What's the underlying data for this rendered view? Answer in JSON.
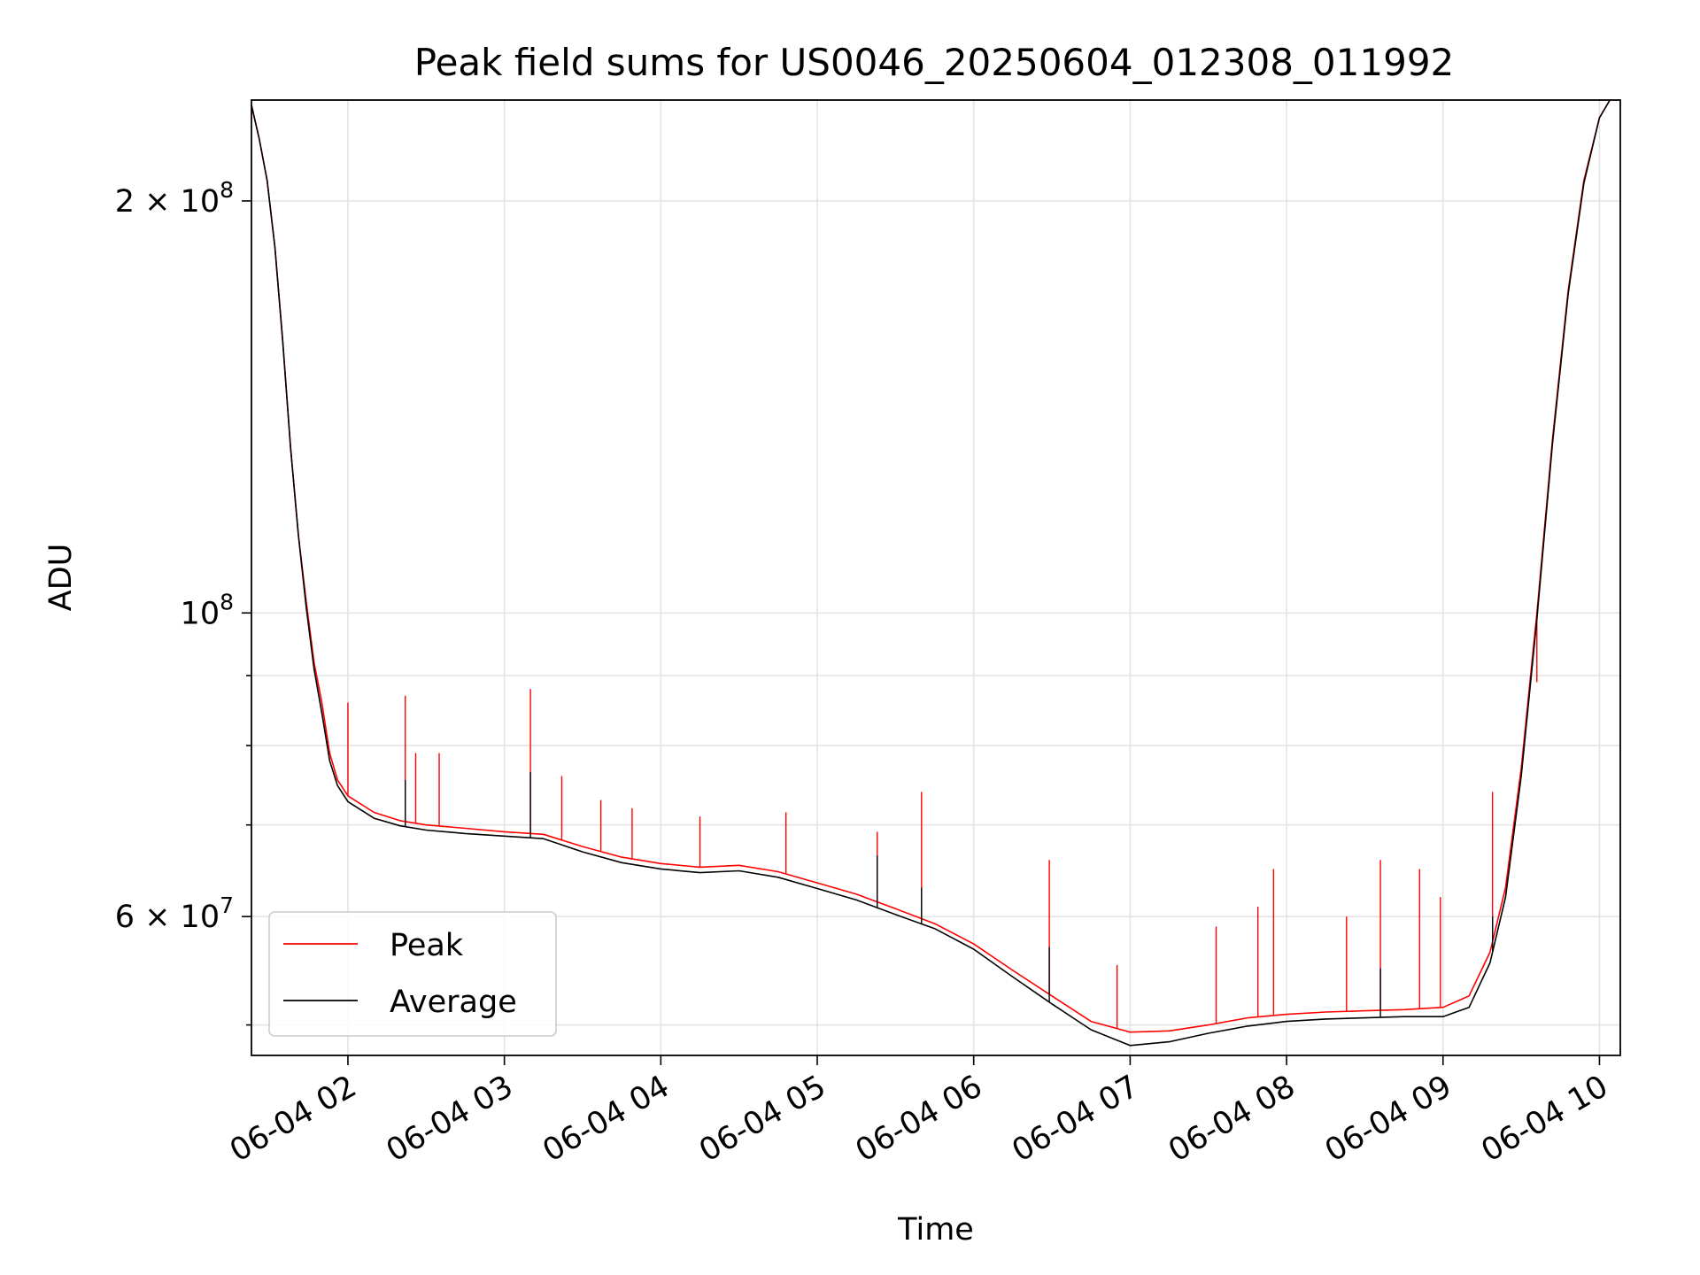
{
  "colors": {
    "peak": "#ff0000",
    "average": "#000000",
    "grid": "#e4e4e4",
    "background": "#ffffff"
  },
  "chart_data": {
    "type": "line",
    "title": "Peak field sums for US0046_20250604_012308_011992",
    "xlabel": "Time",
    "ylabel": "ADU",
    "yscale": "log",
    "grid": true,
    "legend_position": "lower-left",
    "xlim": [
      "2025-06-04 01:23",
      "2025-06-04 10:08"
    ],
    "ylim": [
      47500000,
      237000000
    ],
    "x_ticks": [
      "2025-06-04 02:00",
      "2025-06-04 03:00",
      "2025-06-04 04:00",
      "2025-06-04 05:00",
      "2025-06-04 06:00",
      "2025-06-04 07:00",
      "2025-06-04 08:00",
      "2025-06-04 09:00",
      "2025-06-04 10:00"
    ],
    "x_tick_labels": [
      "06-04 02",
      "06-04 03",
      "06-04 04",
      "06-04 05",
      "06-04 06",
      "06-04 07",
      "06-04 08",
      "06-04 09",
      "06-04 10"
    ],
    "y_major_ticks": [
      {
        "value": 200000000,
        "mantissa": "2",
        "exponent": "8"
      },
      {
        "value": 100000000,
        "mantissa": "",
        "exponent": "8"
      },
      {
        "value": 60000000,
        "mantissa": "6",
        "exponent": "7"
      }
    ],
    "y_minor_ticks": [
      50000000,
      70000000,
      80000000,
      90000000
    ],
    "series": [
      {
        "name": "Peak",
        "color": "#ff0000",
        "points": [
          [
            "2025-06-04 01:23",
            235000000
          ],
          [
            "2025-06-04 01:26",
            222000000
          ],
          [
            "2025-06-04 01:29",
            207000000
          ],
          [
            "2025-06-04 01:32",
            185000000
          ],
          [
            "2025-06-04 01:35",
            158000000
          ],
          [
            "2025-06-04 01:38",
            132000000
          ],
          [
            "2025-06-04 01:41",
            114000000
          ],
          [
            "2025-06-04 01:44",
            102000000
          ],
          [
            "2025-06-04 01:47",
            92000000
          ],
          [
            "2025-06-04 01:50",
            86000000
          ],
          [
            "2025-06-04 01:53",
            79000000
          ],
          [
            "2025-06-04 01:56",
            75500000
          ],
          [
            "2025-06-04 02:00",
            73500000
          ],
          [
            "2025-06-04 02:10",
            71500000
          ],
          [
            "2025-06-04 02:20",
            70500000
          ],
          [
            "2025-06-04 02:30",
            70000000
          ],
          [
            "2025-06-04 02:45",
            69600000
          ],
          [
            "2025-06-04 03:00",
            69200000
          ],
          [
            "2025-06-04 03:15",
            68900000
          ],
          [
            "2025-06-04 03:30",
            67500000
          ],
          [
            "2025-06-04 03:45",
            66300000
          ],
          [
            "2025-06-04 04:00",
            65600000
          ],
          [
            "2025-06-04 04:15",
            65200000
          ],
          [
            "2025-06-04 04:30",
            65400000
          ],
          [
            "2025-06-04 04:45",
            64700000
          ],
          [
            "2025-06-04 05:00",
            63500000
          ],
          [
            "2025-06-04 05:15",
            62300000
          ],
          [
            "2025-06-04 05:30",
            60800000
          ],
          [
            "2025-06-04 05:45",
            59300000
          ],
          [
            "2025-06-04 06:00",
            57300000
          ],
          [
            "2025-06-04 06:15",
            54800000
          ],
          [
            "2025-06-04 06:30",
            52500000
          ],
          [
            "2025-06-04 06:45",
            50300000
          ],
          [
            "2025-06-04 07:00",
            49400000
          ],
          [
            "2025-06-04 07:15",
            49500000
          ],
          [
            "2025-06-04 07:30",
            50000000
          ],
          [
            "2025-06-04 07:45",
            50600000
          ],
          [
            "2025-06-04 08:00",
            50900000
          ],
          [
            "2025-06-04 08:15",
            51100000
          ],
          [
            "2025-06-04 08:30",
            51200000
          ],
          [
            "2025-06-04 08:45",
            51300000
          ],
          [
            "2025-06-04 09:00",
            51500000
          ],
          [
            "2025-06-04 09:10",
            52500000
          ],
          [
            "2025-06-04 09:18",
            56500000
          ],
          [
            "2025-06-04 09:24",
            63000000
          ],
          [
            "2025-06-04 09:30",
            77000000
          ],
          [
            "2025-06-04 09:36",
            100000000
          ],
          [
            "2025-06-04 09:42",
            134000000
          ],
          [
            "2025-06-04 09:48",
            172000000
          ],
          [
            "2025-06-04 09:54",
            207000000
          ],
          [
            "2025-06-04 10:00",
            230000000
          ],
          [
            "2025-06-04 10:04",
            237000000
          ]
        ],
        "spikes": [
          [
            "2025-06-04 02:00",
            86000000
          ],
          [
            "2025-06-04 02:22",
            87000000
          ],
          [
            "2025-06-04 02:26",
            79000000
          ],
          [
            "2025-06-04 02:35",
            79000000
          ],
          [
            "2025-06-04 03:10",
            88000000
          ],
          [
            "2025-06-04 03:22",
            76000000
          ],
          [
            "2025-06-04 03:37",
            73000000
          ],
          [
            "2025-06-04 03:49",
            72000000
          ],
          [
            "2025-06-04 04:15",
            71000000
          ],
          [
            "2025-06-04 04:48",
            71500000
          ],
          [
            "2025-06-04 05:23",
            69200000
          ],
          [
            "2025-06-04 05:40",
            74000000
          ],
          [
            "2025-06-04 06:29",
            66000000
          ],
          [
            "2025-06-04 06:55",
            55300000
          ],
          [
            "2025-06-04 07:33",
            59000000
          ],
          [
            "2025-06-04 07:49",
            61000000
          ],
          [
            "2025-06-04 07:55",
            65000000
          ],
          [
            "2025-06-04 08:23",
            60000000
          ],
          [
            "2025-06-04 08:36",
            66000000
          ],
          [
            "2025-06-04 08:51",
            65000000
          ],
          [
            "2025-06-04 08:59",
            62000000
          ],
          [
            "2025-06-04 09:19",
            74000000
          ],
          [
            "2025-06-04 09:36",
            89000000
          ]
        ]
      },
      {
        "name": "Average",
        "color": "#000000",
        "points": [
          [
            "2025-06-04 01:23",
            235000000
          ],
          [
            "2025-06-04 01:26",
            222000000
          ],
          [
            "2025-06-04 01:29",
            207000000
          ],
          [
            "2025-06-04 01:32",
            185000000
          ],
          [
            "2025-06-04 01:35",
            158000000
          ],
          [
            "2025-06-04 01:38",
            132000000
          ],
          [
            "2025-06-04 01:41",
            114000000
          ],
          [
            "2025-06-04 01:44",
            101000000
          ],
          [
            "2025-06-04 01:47",
            91000000
          ],
          [
            "2025-06-04 01:50",
            84500000
          ],
          [
            "2025-06-04 01:53",
            78000000
          ],
          [
            "2025-06-04 01:56",
            74800000
          ],
          [
            "2025-06-04 02:00",
            72800000
          ],
          [
            "2025-06-04 02:10",
            70800000
          ],
          [
            "2025-06-04 02:20",
            69900000
          ],
          [
            "2025-06-04 02:30",
            69400000
          ],
          [
            "2025-06-04 02:45",
            69000000
          ],
          [
            "2025-06-04 03:00",
            68700000
          ],
          [
            "2025-06-04 03:15",
            68400000
          ],
          [
            "2025-06-04 03:30",
            66900000
          ],
          [
            "2025-06-04 03:45",
            65700000
          ],
          [
            "2025-06-04 04:00",
            65000000
          ],
          [
            "2025-06-04 04:15",
            64600000
          ],
          [
            "2025-06-04 04:30",
            64800000
          ],
          [
            "2025-06-04 04:45",
            64100000
          ],
          [
            "2025-06-04 05:00",
            62900000
          ],
          [
            "2025-06-04 05:15",
            61700000
          ],
          [
            "2025-06-04 05:30",
            60200000
          ],
          [
            "2025-06-04 05:45",
            58800000
          ],
          [
            "2025-06-04 06:00",
            56800000
          ],
          [
            "2025-06-04 06:15",
            54200000
          ],
          [
            "2025-06-04 06:30",
            51800000
          ],
          [
            "2025-06-04 06:45",
            49600000
          ],
          [
            "2025-06-04 07:00",
            48300000
          ],
          [
            "2025-06-04 07:15",
            48600000
          ],
          [
            "2025-06-04 07:30",
            49300000
          ],
          [
            "2025-06-04 07:45",
            49900000
          ],
          [
            "2025-06-04 08:00",
            50300000
          ],
          [
            "2025-06-04 08:15",
            50500000
          ],
          [
            "2025-06-04 08:30",
            50600000
          ],
          [
            "2025-06-04 08:45",
            50700000
          ],
          [
            "2025-06-04 09:00",
            50700000
          ],
          [
            "2025-06-04 09:10",
            51500000
          ],
          [
            "2025-06-04 09:18",
            55500000
          ],
          [
            "2025-06-04 09:24",
            62000000
          ],
          [
            "2025-06-04 09:30",
            76000000
          ],
          [
            "2025-06-04 09:36",
            99000000
          ],
          [
            "2025-06-04 09:42",
            133000000
          ],
          [
            "2025-06-04 09:48",
            171000000
          ],
          [
            "2025-06-04 09:54",
            206000000
          ],
          [
            "2025-06-04 10:00",
            230000000
          ],
          [
            "2025-06-04 10:04",
            237000000
          ]
        ],
        "spikes": [
          [
            "2025-06-04 02:22",
            75500000
          ],
          [
            "2025-06-04 03:10",
            76500000
          ],
          [
            "2025-06-04 05:23",
            66500000
          ],
          [
            "2025-06-04 05:40",
            63000000
          ],
          [
            "2025-06-04 06:29",
            57000000
          ],
          [
            "2025-06-04 08:36",
            55000000
          ],
          [
            "2025-06-04 09:19",
            60000000
          ]
        ]
      }
    ]
  }
}
